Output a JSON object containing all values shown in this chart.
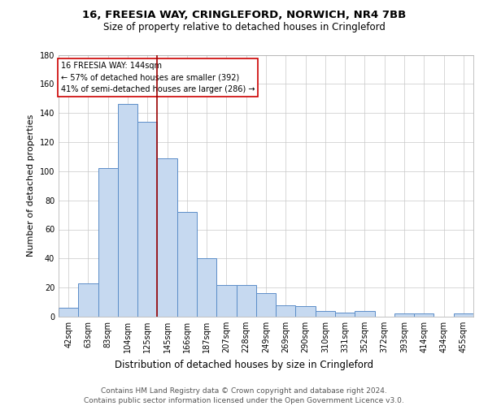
{
  "title": "16, FREESIA WAY, CRINGLEFORD, NORWICH, NR4 7BB",
  "subtitle": "Size of property relative to detached houses in Cringleford",
  "xlabel": "Distribution of detached houses by size in Cringleford",
  "ylabel": "Number of detached properties",
  "bar_color": "#c6d9f0",
  "bar_edge_color": "#5b8dc8",
  "background_color": "#ffffff",
  "grid_color": "#c8c8c8",
  "annotation_line_color": "#990000",
  "annotation_box_color": "#ffffff",
  "annotation_box_edge": "#cc0000",
  "categories": [
    "42sqm",
    "63sqm",
    "83sqm",
    "104sqm",
    "125sqm",
    "145sqm",
    "166sqm",
    "187sqm",
    "207sqm",
    "228sqm",
    "249sqm",
    "269sqm",
    "290sqm",
    "310sqm",
    "331sqm",
    "352sqm",
    "372sqm",
    "393sqm",
    "414sqm",
    "434sqm",
    "455sqm"
  ],
  "values": [
    6,
    23,
    102,
    146,
    134,
    109,
    72,
    40,
    22,
    22,
    16,
    8,
    7,
    4,
    3,
    4,
    0,
    2,
    2,
    0,
    2
  ],
  "ylim": [
    0,
    180
  ],
  "yticks": [
    0,
    20,
    40,
    60,
    80,
    100,
    120,
    140,
    160,
    180
  ],
  "property_label": "16 FREESIA WAY: 144sqm",
  "annotation_line1": "← 57% of detached houses are smaller (392)",
  "annotation_line2": "41% of semi-detached houses are larger (286) →",
  "vline_x_index": 4.5,
  "footer_line1": "Contains HM Land Registry data © Crown copyright and database right 2024.",
  "footer_line2": "Contains public sector information licensed under the Open Government Licence v3.0.",
  "title_fontsize": 9.5,
  "subtitle_fontsize": 8.5,
  "ylabel_fontsize": 8,
  "xlabel_fontsize": 8.5,
  "tick_fontsize": 7,
  "annot_fontsize": 7,
  "footer_fontsize": 6.5
}
